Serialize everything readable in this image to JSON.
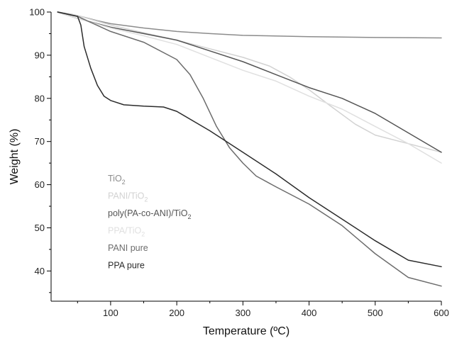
{
  "chart_data": {
    "type": "line",
    "title": "",
    "xlabel": "Temperature (ºC)",
    "ylabel": "Weight (%)",
    "xlim": [
      10,
      600
    ],
    "ylim": [
      33,
      100
    ],
    "x_ticks": [
      100,
      200,
      300,
      400,
      500,
      600
    ],
    "y_ticks": [
      40,
      50,
      60,
      70,
      80,
      90,
      100
    ],
    "grid": false,
    "legend_position": "left-bottom",
    "series": [
      {
        "name": "TiO2",
        "label_main": "TiO",
        "label_sub": "2",
        "color": "#8c8c8c",
        "x": [
          20,
          40,
          60,
          80,
          100,
          150,
          200,
          250,
          300,
          400,
          500,
          600
        ],
        "y": [
          100,
          99.5,
          98.8,
          98,
          97.3,
          96.3,
          95.5,
          95,
          94.6,
          94.3,
          94.1,
          94.0
        ]
      },
      {
        "name": "PANI/TiO2",
        "label_main": "PANI/TiO",
        "label_sub": "2",
        "color": "#d2d2d2",
        "x": [
          20,
          50,
          100,
          150,
          200,
          250,
          300,
          340,
          370,
          400,
          430,
          470,
          500,
          550,
          600
        ],
        "y": [
          100,
          99.2,
          97,
          95.2,
          93.5,
          91.5,
          89.5,
          87.5,
          85,
          82,
          78.5,
          74,
          71.5,
          69.5,
          67.5
        ]
      },
      {
        "name": "poly(PA-co-ANI)/TiO2",
        "label_main": "poly(PA-co-ANI)/TiO",
        "label_sub": "2",
        "color": "#555555",
        "x": [
          20,
          50,
          100,
          150,
          200,
          250,
          300,
          350,
          400,
          450,
          500,
          550,
          600
        ],
        "y": [
          100,
          98.5,
          96.5,
          95,
          93.5,
          91,
          88.5,
          85.5,
          82.5,
          80,
          76.5,
          72,
          67.5
        ]
      },
      {
        "name": "PPA/TiO2",
        "label_main": "PPA/TiO",
        "label_sub": "2",
        "color": "#e0e0e0",
        "x": [
          20,
          50,
          100,
          150,
          200,
          250,
          300,
          350,
          400,
          450,
          500,
          550,
          600
        ],
        "y": [
          100,
          98.5,
          96.3,
          94.5,
          92.5,
          89.5,
          86.5,
          84,
          80.5,
          77.5,
          73.5,
          69.5,
          65
        ]
      },
      {
        "name": "PANI pure",
        "label_main": "PANI pure",
        "label_sub": "",
        "color": "#6c6c6c",
        "x": [
          20,
          50,
          100,
          150,
          200,
          220,
          240,
          260,
          280,
          300,
          320,
          350,
          400,
          450,
          500,
          550,
          600
        ],
        "y": [
          100,
          99,
          95.5,
          93,
          89,
          85.5,
          80,
          73.5,
          68.5,
          65,
          62,
          59.5,
          55.5,
          50.5,
          44,
          38.5,
          36.5
        ]
      },
      {
        "name": "PPA pure",
        "label_main": "PPA pure",
        "label_sub": "",
        "color": "#2b2b2b",
        "x": [
          20,
          50,
          55,
          60,
          70,
          80,
          90,
          100,
          120,
          150,
          180,
          200,
          250,
          300,
          350,
          400,
          450,
          500,
          550,
          600
        ],
        "y": [
          100,
          99,
          97,
          92,
          87,
          83,
          80.5,
          79.5,
          78.5,
          78.2,
          78,
          77,
          72.5,
          67.5,
          62.5,
          57,
          52,
          47,
          42.5,
          41
        ]
      }
    ]
  }
}
